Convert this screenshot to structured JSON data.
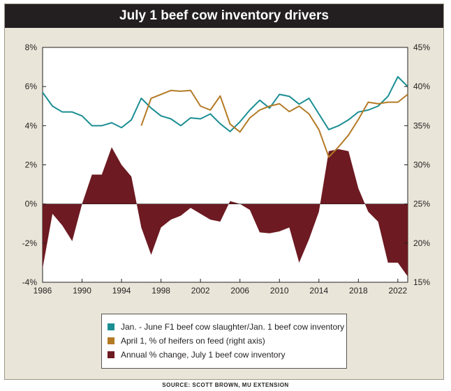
{
  "title": "July 1 beef cow inventory drivers",
  "source": "SOURCE: SCOTT BROWN, MU EXTENSION",
  "chart_data": {
    "type": "line",
    "title": "July 1 beef cow inventory drivers",
    "xlim": [
      1986,
      2023
    ],
    "x_ticks": [
      1986,
      1990,
      1994,
      1998,
      2002,
      2006,
      2010,
      2014,
      2018,
      2022
    ],
    "left_axis": {
      "ylim": [
        -4,
        8
      ],
      "ticks": [
        -4,
        -2,
        0,
        2,
        4,
        6,
        8
      ],
      "format": "percent"
    },
    "right_axis": {
      "ylim": [
        15,
        45
      ],
      "ticks": [
        15,
        20,
        25,
        30,
        35,
        40,
        45
      ],
      "format": "percent"
    },
    "grid": false,
    "legend_position": "bottom",
    "series": [
      {
        "name": "Jan. - June F1 beef cow slaughter/Jan. 1 beef cow inventory",
        "type": "line",
        "axis": "left",
        "color": "#1b8e93",
        "x": [
          1986,
          1987,
          1988,
          1989,
          1990,
          1991,
          1992,
          1993,
          1994,
          1995,
          1996,
          1997,
          1998,
          1999,
          2000,
          2001,
          2002,
          2003,
          2004,
          2005,
          2006,
          2007,
          2008,
          2009,
          2010,
          2011,
          2012,
          2013,
          2014,
          2015,
          2016,
          2017,
          2018,
          2019,
          2020,
          2021,
          2022,
          2023
        ],
        "values": [
          5.7,
          5.0,
          4.7,
          4.7,
          4.5,
          4.0,
          4.0,
          4.15,
          3.9,
          4.3,
          5.4,
          4.9,
          4.5,
          4.35,
          4.0,
          4.4,
          4.35,
          4.6,
          4.1,
          3.7,
          4.2,
          4.8,
          5.3,
          4.9,
          5.6,
          5.5,
          5.1,
          5.4,
          4.6,
          3.8,
          4.0,
          4.3,
          4.7,
          4.8,
          5.0,
          5.5,
          6.5,
          6.0
        ]
      },
      {
        "name": "April 1, % of heifers on feed (right axis)",
        "type": "line",
        "axis": "right",
        "color": "#b37a25",
        "x": [
          1996,
          1997,
          1998,
          1999,
          2000,
          2001,
          2002,
          2003,
          2004,
          2005,
          2006,
          2007,
          2008,
          2009,
          2010,
          2011,
          2012,
          2013,
          2014,
          2015,
          2016,
          2017,
          2018,
          2019,
          2020,
          2021,
          2022,
          2023
        ],
        "values": [
          35.0,
          38.5,
          39.0,
          39.5,
          39.4,
          39.5,
          37.5,
          37.0,
          38.8,
          35.2,
          34.2,
          36.0,
          37.0,
          37.5,
          37.8,
          36.8,
          37.5,
          36.5,
          34.5,
          31.0,
          32.3,
          33.8,
          35.8,
          38.0,
          37.8,
          38.0,
          38.0,
          39.0
        ]
      },
      {
        "name": "Annual % change, July 1 beef cow inventory",
        "type": "area",
        "axis": "left",
        "color": "#6d1a22",
        "x": [
          1986,
          1987,
          1988,
          1989,
          1990,
          1991,
          1992,
          1993,
          1994,
          1995,
          1996,
          1997,
          1998,
          1999,
          2000,
          2001,
          2002,
          2003,
          2004,
          2005,
          2006,
          2007,
          2008,
          2009,
          2010,
          2011,
          2012,
          2013,
          2014,
          2015,
          2016,
          2017,
          2018,
          2019,
          2020,
          2021,
          2022,
          2023
        ],
        "values": [
          -3.3,
          -0.5,
          -1.1,
          -1.9,
          0.0,
          1.5,
          1.5,
          2.9,
          2.0,
          1.4,
          -1.2,
          -2.6,
          -1.2,
          -0.8,
          -0.6,
          -0.2,
          -0.5,
          -0.8,
          -0.9,
          0.15,
          0.0,
          -0.3,
          -1.45,
          -1.5,
          -1.4,
          -1.2,
          -3.0,
          -1.8,
          -0.4,
          2.7,
          2.8,
          2.7,
          0.8,
          -0.4,
          -0.9,
          -3.0,
          -3.0,
          -3.7
        ]
      }
    ]
  }
}
